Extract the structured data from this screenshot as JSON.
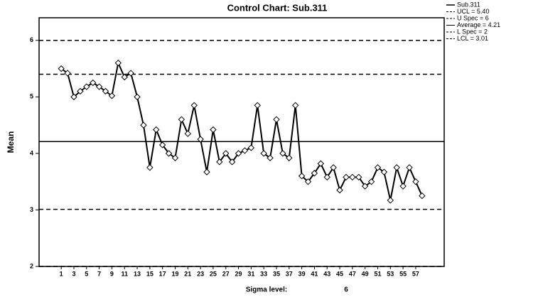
{
  "chart_data": {
    "type": "line",
    "title": "Control Chart: Sub.311",
    "y_label": "Mean",
    "x_label": "Sigma level:",
    "x_label_value": "6",
    "x": [
      1,
      2,
      3,
      4,
      5,
      6,
      7,
      8,
      9,
      10,
      11,
      12,
      13,
      14,
      15,
      16,
      17,
      18,
      19,
      20,
      21,
      22,
      23,
      24,
      25,
      26,
      27,
      28,
      29,
      30,
      31,
      32,
      33,
      34,
      35,
      36,
      37,
      38,
      39,
      40,
      41,
      42,
      43,
      44,
      45,
      46,
      47,
      48,
      49,
      50,
      51,
      52,
      53,
      54,
      55,
      56,
      57,
      58
    ],
    "series": [
      {
        "name": "Sub.311",
        "color": "#000000",
        "values": [
          5.5,
          5.42,
          5.0,
          5.1,
          5.18,
          5.25,
          5.18,
          5.1,
          5.02,
          5.6,
          5.35,
          5.42,
          5.0,
          4.5,
          3.75,
          4.42,
          4.15,
          4.0,
          3.92,
          4.6,
          4.35,
          4.85,
          4.25,
          3.67,
          4.42,
          3.85,
          4.0,
          3.85,
          4.0,
          4.05,
          4.1,
          4.85,
          4.0,
          3.92,
          4.6,
          4.0,
          3.92,
          4.85,
          3.6,
          3.5,
          3.65,
          3.82,
          3.58,
          3.75,
          3.35,
          3.58,
          3.58,
          3.58,
          3.42,
          3.5,
          3.75,
          3.67,
          3.17,
          3.75,
          3.42,
          3.75,
          3.5,
          3.25
        ]
      }
    ],
    "reference_lines": [
      {
        "name": "UCL = 5.40",
        "value": 5.4,
        "style": "dashed"
      },
      {
        "name": "U Spec = 6",
        "value": 6,
        "style": "dashed"
      },
      {
        "name": "Average = 4.21",
        "value": 4.21,
        "style": "solid"
      },
      {
        "name": "L Spec = 2",
        "value": 2,
        "style": "dashed"
      },
      {
        "name": "LCL = 3.01",
        "value": 3.01,
        "style": "dashed"
      }
    ],
    "xlim": [
      -2.5,
      61.5
    ],
    "xticks": [
      1,
      3,
      5,
      7,
      9,
      11,
      13,
      15,
      17,
      19,
      21,
      23,
      25,
      27,
      29,
      31,
      33,
      35,
      37,
      39,
      41,
      43,
      45,
      47,
      49,
      51,
      53,
      55,
      57
    ],
    "ylim": [
      2,
      6.4
    ],
    "yticks": [
      2,
      3,
      4,
      5,
      6
    ],
    "marker": "diamond",
    "legend": "outside-right"
  }
}
